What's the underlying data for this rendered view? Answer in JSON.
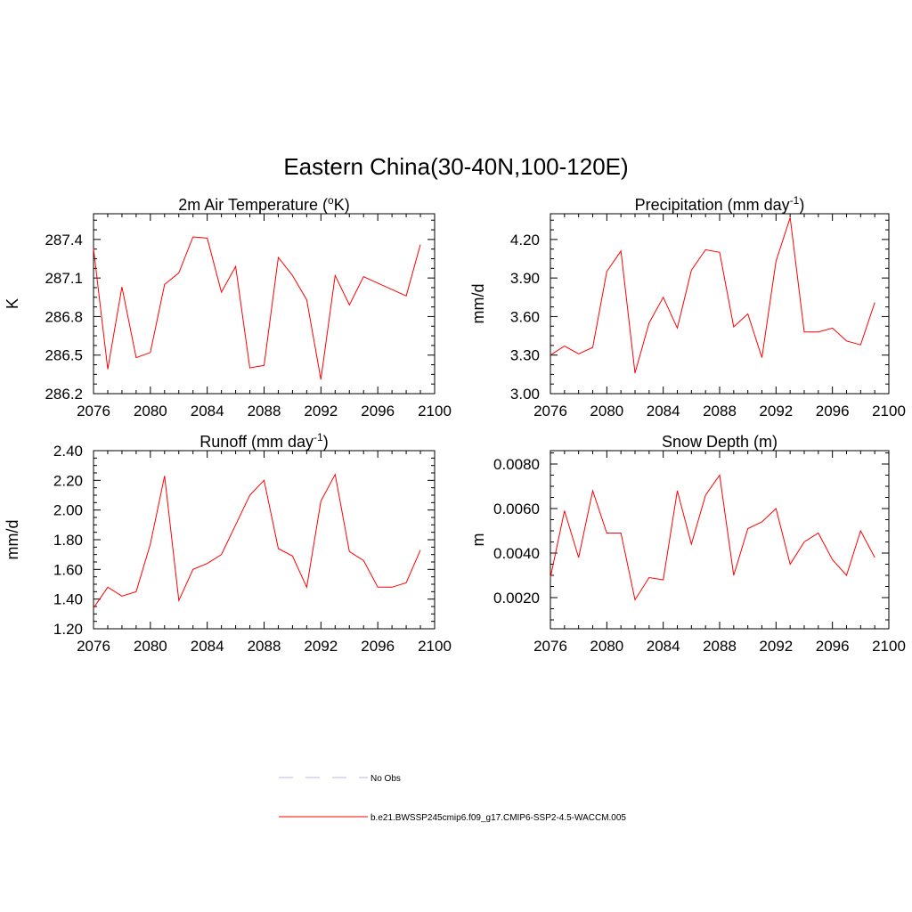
{
  "main_title": "Eastern China(30-40N,100-120E)",
  "legend": [
    {
      "label": "No Obs",
      "color": "#b9b9e6",
      "dash": true
    },
    {
      "label": "b.e21.BWSSP245cmip6.f09_g17.CMIP6-SSP2-4.5-WACCM.005",
      "color": "#ff0000",
      "dash": false
    }
  ],
  "colors": {
    "series": "#ff0000",
    "axis": "#000000"
  },
  "chart_data": [
    {
      "type": "line",
      "title": "2m Air Temperature (",
      "title_sup": "o",
      "title_post": "K)",
      "xlabel": "",
      "ylabel": "K",
      "xlim": [
        2076,
        2100
      ],
      "ylim": [
        286.2,
        287.6
      ],
      "xticks": [
        2076,
        2080,
        2084,
        2088,
        2092,
        2096,
        2100
      ],
      "yticks": [
        "286.2",
        "286.5",
        "286.8",
        "287.1",
        "287.4"
      ],
      "x": [
        2076,
        2077,
        2078,
        2079,
        2080,
        2081,
        2082,
        2083,
        2084,
        2085,
        2086,
        2087,
        2088,
        2089,
        2090,
        2091,
        2092,
        2093,
        2094,
        2095,
        2096,
        2097,
        2098,
        2099
      ],
      "values": [
        287.33,
        286.39,
        287.03,
        286.48,
        286.52,
        287.05,
        287.14,
        287.42,
        287.41,
        286.99,
        287.19,
        286.4,
        286.42,
        287.26,
        287.12,
        286.93,
        286.31,
        287.12,
        286.89,
        287.11,
        287.06,
        287.01,
        286.96,
        287.36
      ]
    },
    {
      "type": "line",
      "title": "Precipitation (mm day",
      "title_sup": "-1",
      "title_post": ")",
      "xlabel": "",
      "ylabel": "mm/d",
      "xlim": [
        2076,
        2100
      ],
      "ylim": [
        3.0,
        4.4
      ],
      "xticks": [
        2076,
        2080,
        2084,
        2088,
        2092,
        2096,
        2100
      ],
      "yticks": [
        "3.00",
        "3.30",
        "3.60",
        "3.90",
        "4.20"
      ],
      "x": [
        2076,
        2077,
        2078,
        2079,
        2080,
        2081,
        2082,
        2083,
        2084,
        2085,
        2086,
        2087,
        2088,
        2089,
        2090,
        2091,
        2092,
        2093,
        2094,
        2095,
        2096,
        2097,
        2098,
        2099
      ],
      "values": [
        3.3,
        3.37,
        3.31,
        3.36,
        3.95,
        4.11,
        3.16,
        3.55,
        3.75,
        3.51,
        3.96,
        4.12,
        4.1,
        3.52,
        3.62,
        3.28,
        4.03,
        4.37,
        3.48,
        3.48,
        3.51,
        3.41,
        3.38,
        3.71
      ]
    },
    {
      "type": "line",
      "title": "Runoff (mm day",
      "title_sup": "-1",
      "title_post": ")",
      "xlabel": "",
      "ylabel": "mm/d",
      "xlim": [
        2076,
        2100
      ],
      "ylim": [
        1.2,
        2.4
      ],
      "xticks": [
        2076,
        2080,
        2084,
        2088,
        2092,
        2096,
        2100
      ],
      "yticks": [
        "1.20",
        "1.40",
        "1.60",
        "1.80",
        "2.00",
        "2.20",
        "2.40"
      ],
      "x": [
        2076,
        2077,
        2078,
        2079,
        2080,
        2081,
        2082,
        2083,
        2084,
        2085,
        2086,
        2087,
        2088,
        2089,
        2090,
        2091,
        2092,
        2093,
        2094,
        2095,
        2096,
        2097,
        2098,
        2099
      ],
      "values": [
        1.34,
        1.48,
        1.42,
        1.45,
        1.77,
        2.23,
        1.39,
        1.6,
        1.64,
        1.7,
        1.9,
        2.1,
        2.2,
        1.74,
        1.69,
        1.48,
        2.06,
        2.24,
        1.72,
        1.66,
        1.48,
        1.48,
        1.51,
        1.73
      ]
    },
    {
      "type": "line",
      "title": "Snow Depth (m)",
      "title_sup": "",
      "title_post": "",
      "xlabel": "",
      "ylabel": "m",
      "xlim": [
        2076,
        2100
      ],
      "ylim": [
        0.0006,
        0.0086
      ],
      "xticks": [
        2076,
        2080,
        2084,
        2088,
        2092,
        2096,
        2100
      ],
      "yticks": [
        "0.0020",
        "0.0040",
        "0.0060",
        "0.0080"
      ],
      "ytick_values": [
        0.002,
        0.004,
        0.006,
        0.008
      ],
      "x": [
        2076,
        2077,
        2078,
        2079,
        2080,
        2081,
        2082,
        2083,
        2084,
        2085,
        2086,
        2087,
        2088,
        2089,
        2090,
        2091,
        2092,
        2093,
        2094,
        2095,
        2096,
        2097,
        2098,
        2099
      ],
      "values": [
        0.0029,
        0.0059,
        0.0038,
        0.0068,
        0.0049,
        0.0049,
        0.0019,
        0.0029,
        0.0028,
        0.0068,
        0.0044,
        0.0066,
        0.0075,
        0.003,
        0.0051,
        0.0054,
        0.006,
        0.0035,
        0.0045,
        0.0049,
        0.0037,
        0.003,
        0.005,
        0.0038
      ]
    }
  ]
}
